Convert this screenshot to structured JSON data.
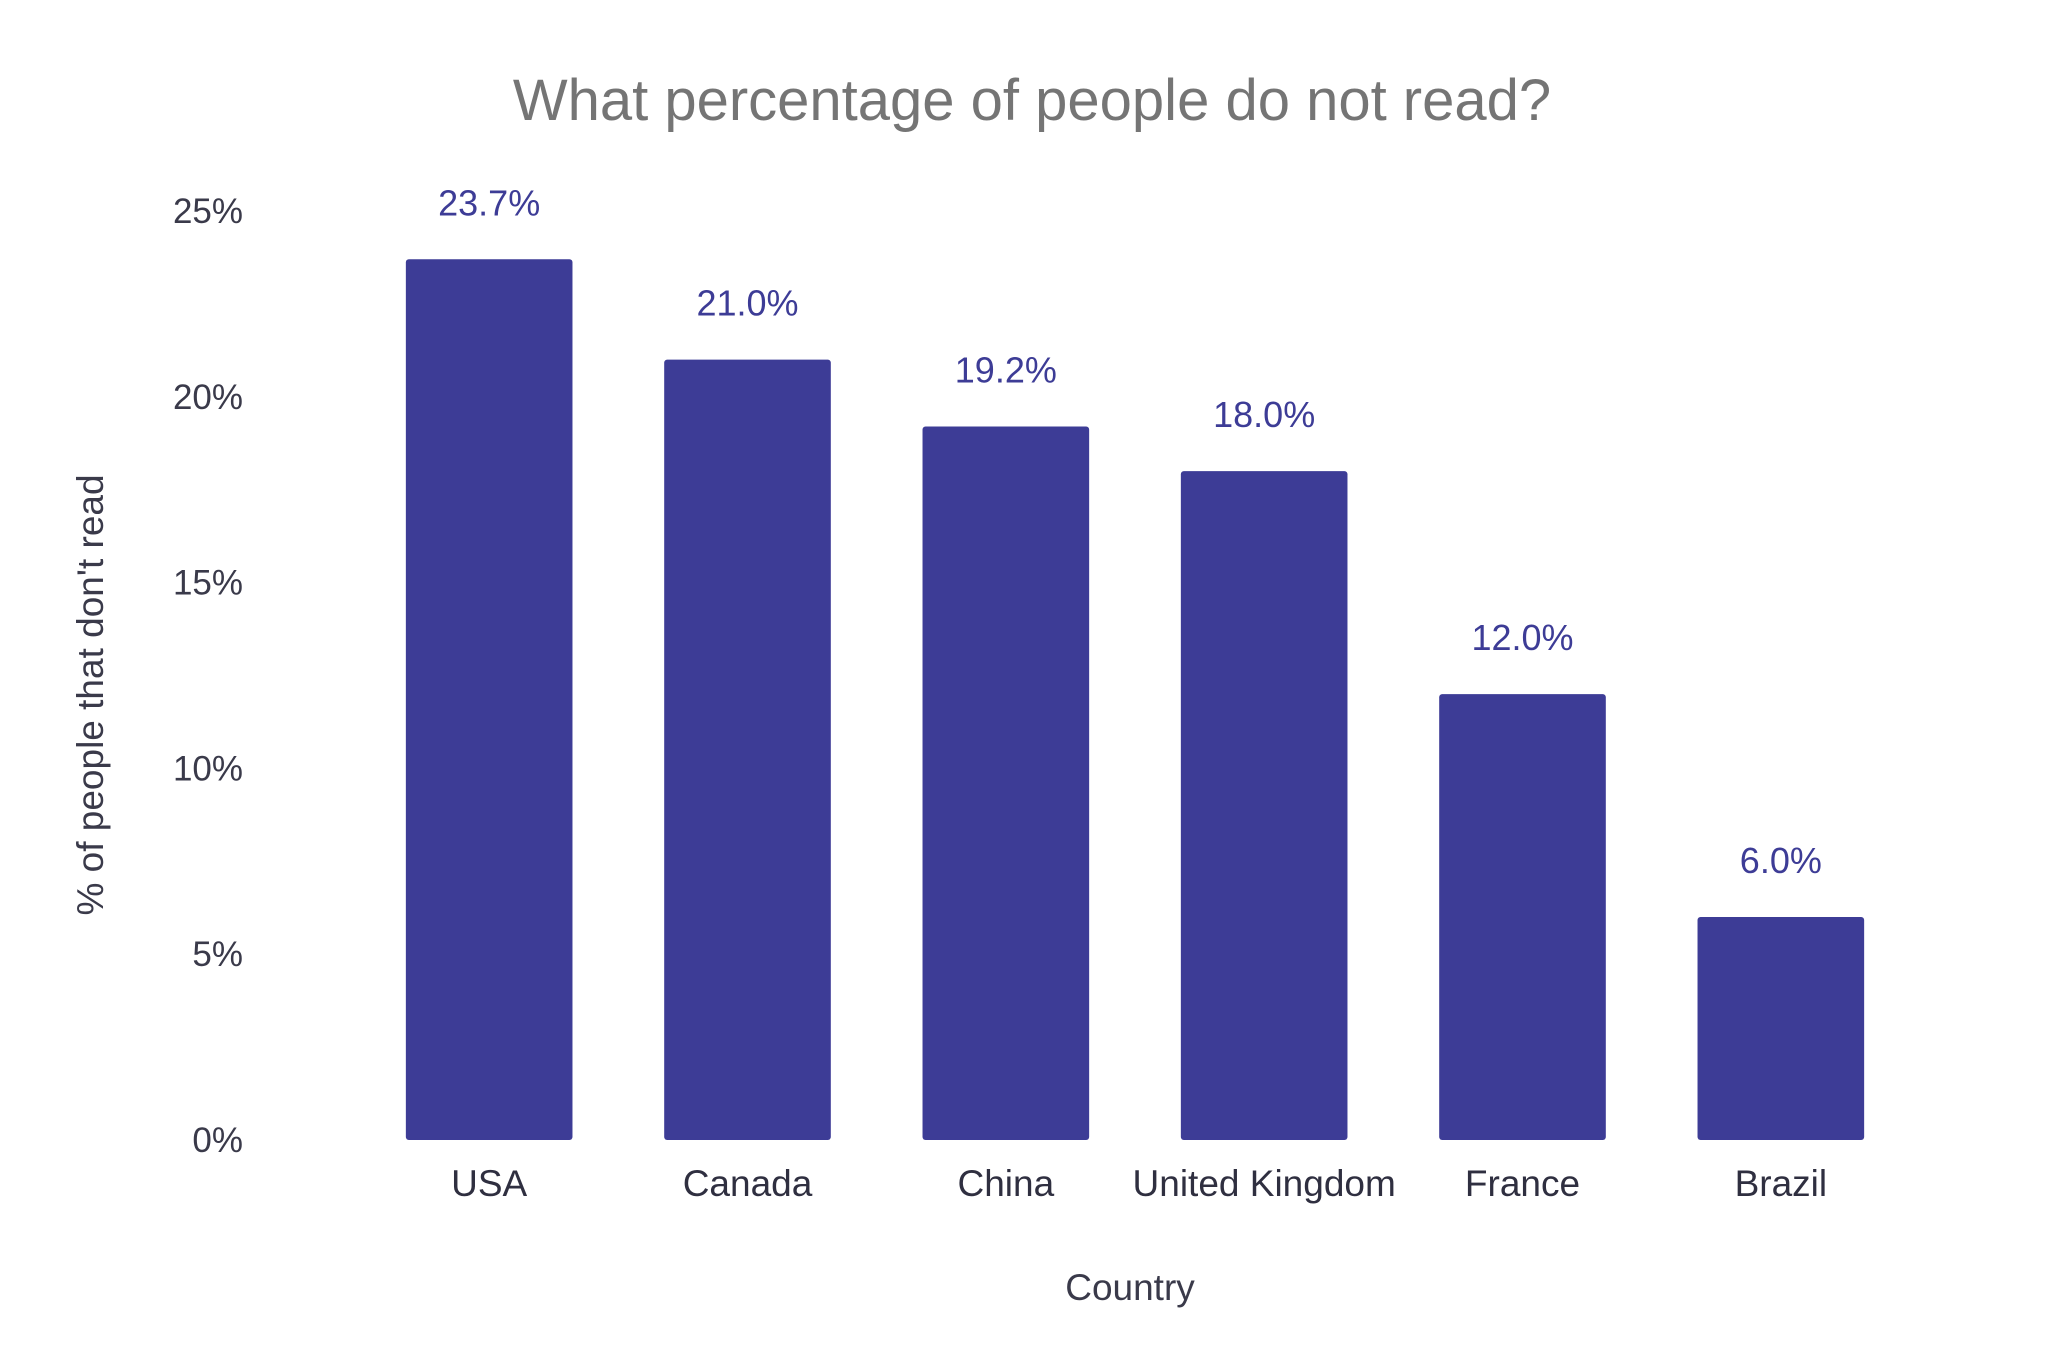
{
  "chart_data": {
    "type": "bar",
    "title": "What percentage of people do not read?",
    "xlabel": "Country",
    "ylabel": "% of people that don't read",
    "categories": [
      "USA",
      "Canada",
      "China",
      "United Kingdom",
      "France",
      "Brazil"
    ],
    "values": [
      23.7,
      21.0,
      19.2,
      18.0,
      12.0,
      6.0
    ],
    "data_labels": [
      "23.7%",
      "21.0%",
      "19.2%",
      "18.0%",
      "12.0%",
      "6.0%"
    ],
    "yticks": [
      "0%",
      "5%",
      "10%",
      "15%",
      "20%",
      "25%"
    ],
    "ylim": [
      0,
      25
    ],
    "grid": false,
    "legend": "none",
    "bar_color": "#3d3c96",
    "label_color": "#3d3c96"
  }
}
